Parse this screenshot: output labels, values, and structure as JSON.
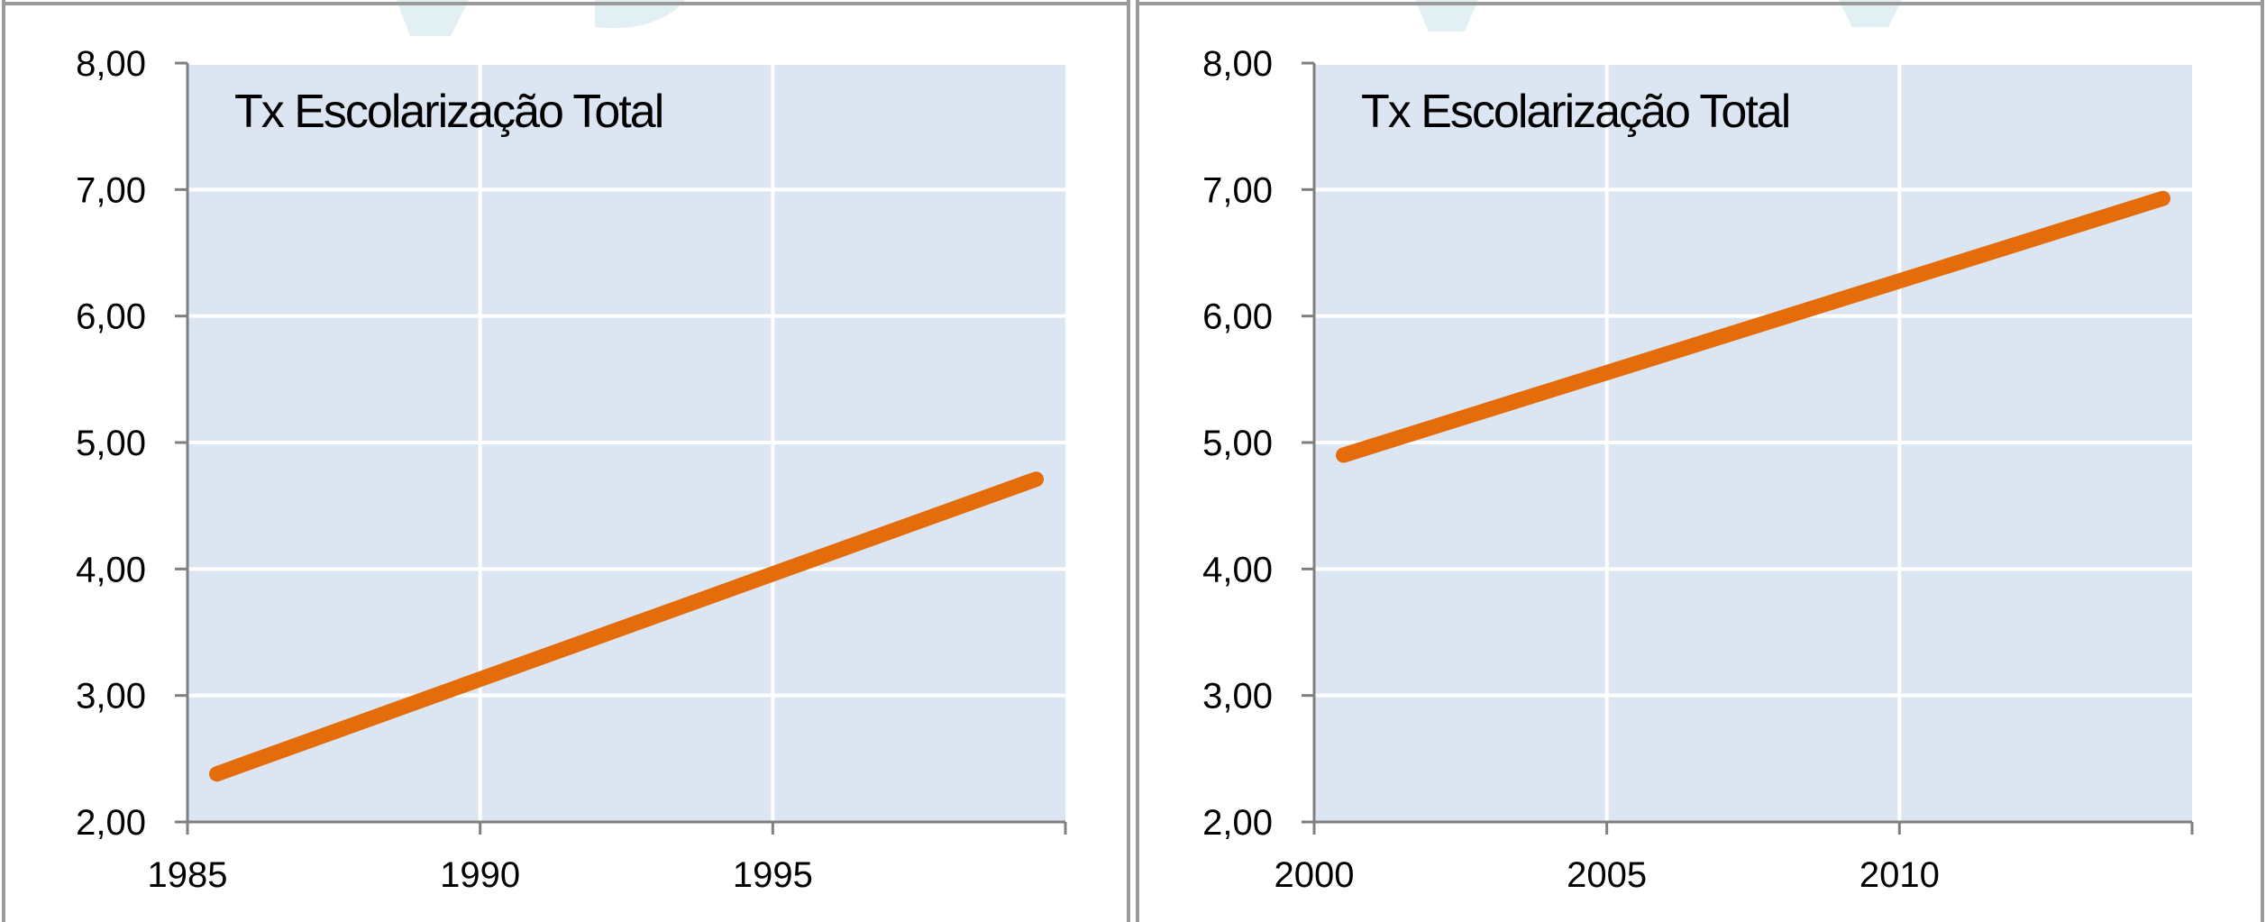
{
  "chart_data": [
    {
      "type": "line",
      "title": "Tx Escolarização Total",
      "xlabel": "",
      "ylabel": "",
      "x_ticks": [
        "1985",
        "1990",
        "1995"
      ],
      "xlim": [
        1985,
        2000
      ],
      "ylim": [
        2,
        8
      ],
      "y_ticks": [
        "2,00",
        "3,00",
        "4,00",
        "5,00",
        "6,00",
        "7,00",
        "8,00"
      ],
      "grid": true,
      "series": [
        {
          "x": [
            1985.5,
            1999.5
          ],
          "y": [
            2.38,
            4.71
          ],
          "color": "#e46c0a"
        }
      ]
    },
    {
      "type": "line",
      "title": "Tx Escolarização Total",
      "xlabel": "",
      "ylabel": "",
      "x_ticks": [
        "2000",
        "2005",
        "2010"
      ],
      "xlim": [
        2000,
        2015
      ],
      "ylim": [
        2,
        8
      ],
      "y_ticks": [
        "2,00",
        "3,00",
        "4,00",
        "5,00",
        "6,00",
        "7,00",
        "8,00"
      ],
      "grid": true,
      "series": [
        {
          "x": [
            2000.5,
            2014.5
          ],
          "y": [
            4.9,
            6.93
          ],
          "color": "#e46c0a"
        }
      ]
    }
  ]
}
